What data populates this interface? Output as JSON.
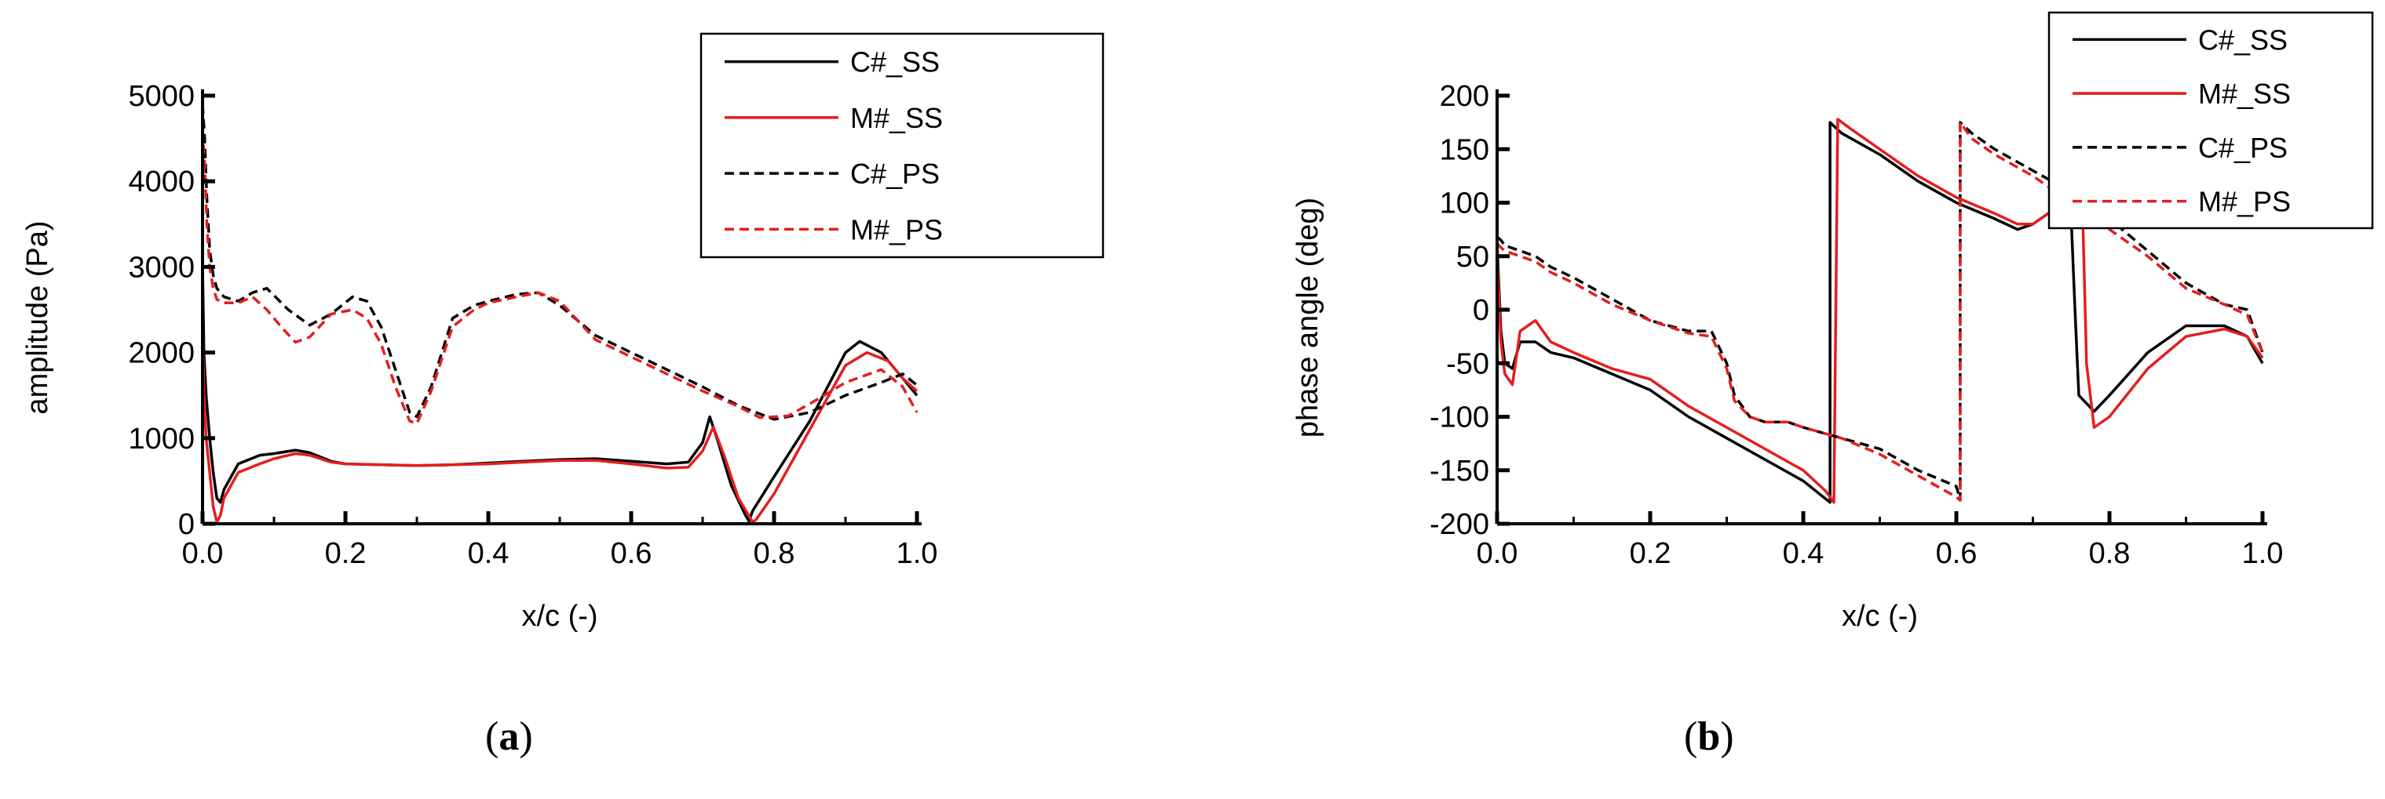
{
  "captions": {
    "a": "a",
    "b": "b"
  },
  "chart_data": [
    {
      "id": "a",
      "type": "line",
      "title": "",
      "xlabel": "x/c (-)",
      "ylabel": "amplitude (Pa)",
      "xlim": [
        0,
        1
      ],
      "ylim": [
        0,
        5000
      ],
      "xticks": [
        0.0,
        0.2,
        0.4,
        0.6,
        0.8,
        1.0
      ],
      "xtick_labels": [
        "0.0",
        "0.2",
        "0.4",
        "0.6",
        "0.8",
        "1.0"
      ],
      "yticks": [
        0,
        1000,
        2000,
        3000,
        4000,
        5000
      ],
      "ytick_labels": [
        "0",
        "1000",
        "2000",
        "3000",
        "4000",
        "5000"
      ],
      "legend_position": "top-right",
      "series": [
        {
          "name": "C#_SS",
          "color": "#000000",
          "dash": "solid",
          "x": [
            0,
            0.002,
            0.005,
            0.01,
            0.015,
            0.02,
            0.025,
            0.03,
            0.05,
            0.08,
            0.1,
            0.13,
            0.15,
            0.18,
            0.2,
            0.25,
            0.3,
            0.35,
            0.4,
            0.45,
            0.5,
            0.55,
            0.6,
            0.65,
            0.68,
            0.7,
            0.71,
            0.72,
            0.74,
            0.76,
            0.765,
            0.77,
            0.8,
            0.85,
            0.9,
            0.92,
            0.95,
            0.98,
            1.0
          ],
          "y": [
            3000,
            2000,
            1500,
            1000,
            600,
            300,
            250,
            400,
            700,
            800,
            820,
            860,
            830,
            730,
            700,
            690,
            680,
            690,
            710,
            730,
            750,
            760,
            730,
            700,
            720,
            950,
            1250,
            1000,
            450,
            100,
            30,
            150,
            550,
            1200,
            2000,
            2130,
            2000,
            1700,
            1500
          ]
        },
        {
          "name": "M#_SS",
          "color": "#e41e1e",
          "dash": "solid",
          "x": [
            0,
            0.002,
            0.005,
            0.01,
            0.015,
            0.02,
            0.025,
            0.03,
            0.05,
            0.08,
            0.1,
            0.13,
            0.15,
            0.18,
            0.2,
            0.25,
            0.3,
            0.35,
            0.4,
            0.45,
            0.5,
            0.55,
            0.6,
            0.65,
            0.68,
            0.7,
            0.715,
            0.73,
            0.75,
            0.77,
            0.775,
            0.8,
            0.85,
            0.9,
            0.93,
            0.96,
            0.98,
            1.0
          ],
          "y": [
            2300,
            1500,
            1000,
            600,
            200,
            20,
            100,
            300,
            600,
            700,
            760,
            820,
            800,
            720,
            700,
            690,
            680,
            690,
            700,
            720,
            740,
            740,
            700,
            650,
            660,
            850,
            1130,
            800,
            300,
            20,
            50,
            350,
            1100,
            1850,
            2000,
            1900,
            1700,
            1550
          ]
        },
        {
          "name": "C#_PS",
          "color": "#000000",
          "dash": "dashed",
          "x": [
            0,
            0.003,
            0.006,
            0.01,
            0.015,
            0.02,
            0.03,
            0.05,
            0.07,
            0.09,
            0.12,
            0.15,
            0.18,
            0.21,
            0.23,
            0.25,
            0.27,
            0.29,
            0.3,
            0.32,
            0.35,
            0.38,
            0.4,
            0.44,
            0.47,
            0.5,
            0.55,
            0.6,
            0.65,
            0.7,
            0.75,
            0.8,
            0.85,
            0.9,
            0.95,
            0.98,
            1.0
          ],
          "y": [
            4900,
            4500,
            3800,
            3200,
            2900,
            2750,
            2650,
            2600,
            2700,
            2750,
            2500,
            2320,
            2450,
            2650,
            2600,
            2300,
            1800,
            1300,
            1250,
            1600,
            2400,
            2550,
            2600,
            2680,
            2700,
            2550,
            2200,
            2000,
            1800,
            1600,
            1380,
            1220,
            1300,
            1500,
            1650,
            1750,
            1620
          ]
        },
        {
          "name": "M#_PS",
          "color": "#e41e1e",
          "dash": "dashed",
          "x": [
            0,
            0.003,
            0.006,
            0.01,
            0.015,
            0.02,
            0.03,
            0.05,
            0.07,
            0.09,
            0.11,
            0.13,
            0.15,
            0.18,
            0.21,
            0.23,
            0.25,
            0.27,
            0.29,
            0.3,
            0.32,
            0.35,
            0.38,
            0.4,
            0.44,
            0.47,
            0.5,
            0.55,
            0.6,
            0.65,
            0.7,
            0.75,
            0.78,
            0.82,
            0.86,
            0.9,
            0.95,
            0.98,
            1.0
          ],
          "y": [
            4600,
            4200,
            3500,
            3000,
            2750,
            2620,
            2580,
            2580,
            2650,
            2500,
            2300,
            2120,
            2180,
            2450,
            2500,
            2400,
            2100,
            1600,
            1200,
            1170,
            1550,
            2300,
            2500,
            2580,
            2650,
            2700,
            2600,
            2150,
            1950,
            1750,
            1550,
            1370,
            1240,
            1260,
            1450,
            1650,
            1800,
            1600,
            1300
          ]
        }
      ]
    },
    {
      "id": "b",
      "type": "line",
      "title": "",
      "xlabel": "x/c (-)",
      "ylabel": "phase angle (deg)",
      "xlim": [
        0,
        1
      ],
      "ylim": [
        -200,
        200
      ],
      "xticks": [
        0.0,
        0.2,
        0.4,
        0.6,
        0.8,
        1.0
      ],
      "xtick_labels": [
        "0.0",
        "0.2",
        "0.4",
        "0.6",
        "0.8",
        "1.0"
      ],
      "yticks": [
        -200,
        -150,
        -100,
        -50,
        0,
        50,
        100,
        150,
        200
      ],
      "ytick_labels": [
        "-200",
        "-150",
        "-100",
        "-50",
        "0",
        "50",
        "100",
        "150",
        "200"
      ],
      "legend_position": "top-right",
      "series": [
        {
          "name": "C#_SS",
          "color": "#000000",
          "dash": "solid",
          "x": [
            0,
            0.005,
            0.01,
            0.02,
            0.03,
            0.05,
            0.07,
            0.1,
            0.15,
            0.2,
            0.25,
            0.3,
            0.35,
            0.4,
            0.435,
            0.435,
            0.45,
            0.5,
            0.55,
            0.6,
            0.65,
            0.68,
            0.7,
            0.72,
            0.75,
            0.755,
            0.76,
            0.78,
            0.8,
            0.85,
            0.9,
            0.95,
            0.98,
            1.0
          ],
          "y": [
            60,
            -20,
            -50,
            -55,
            -30,
            -30,
            -40,
            -45,
            -60,
            -75,
            -100,
            -120,
            -140,
            -160,
            -180,
            175,
            165,
            145,
            120,
            100,
            85,
            75,
            80,
            90,
            85,
            0,
            -80,
            -95,
            -80,
            -40,
            -15,
            -15,
            -25,
            -50
          ]
        },
        {
          "name": "M#_SS",
          "color": "#e41e1e",
          "dash": "solid",
          "x": [
            0,
            0.005,
            0.01,
            0.02,
            0.03,
            0.05,
            0.07,
            0.1,
            0.15,
            0.2,
            0.25,
            0.3,
            0.35,
            0.4,
            0.43,
            0.44,
            0.445,
            0.46,
            0.5,
            0.55,
            0.6,
            0.65,
            0.68,
            0.7,
            0.72,
            0.75,
            0.765,
            0.77,
            0.78,
            0.8,
            0.85,
            0.9,
            0.95,
            0.98,
            1.0
          ],
          "y": [
            50,
            -30,
            -60,
            -70,
            -20,
            -10,
            -30,
            -40,
            -55,
            -65,
            -90,
            -110,
            -130,
            -150,
            -170,
            -180,
            178,
            170,
            150,
            125,
            105,
            90,
            80,
            80,
            90,
            80,
            90,
            -50,
            -110,
            -100,
            -55,
            -25,
            -18,
            -25,
            -45
          ]
        },
        {
          "name": "C#_PS",
          "color": "#000000",
          "dash": "dashed",
          "x": [
            0,
            0.005,
            0.01,
            0.03,
            0.05,
            0.07,
            0.1,
            0.15,
            0.2,
            0.25,
            0.28,
            0.3,
            0.31,
            0.33,
            0.35,
            0.38,
            0.4,
            0.45,
            0.5,
            0.55,
            0.6,
            0.605,
            0.605,
            0.62,
            0.65,
            0.7,
            0.75,
            0.8,
            0.85,
            0.9,
            0.95,
            0.98,
            1.0
          ],
          "y": [
            68,
            65,
            60,
            55,
            50,
            40,
            30,
            10,
            -10,
            -20,
            -20,
            -50,
            -80,
            -100,
            -105,
            -105,
            -110,
            -120,
            -130,
            -150,
            -165,
            -178,
            175,
            165,
            150,
            130,
            110,
            85,
            55,
            25,
            5,
            0,
            -40
          ]
        },
        {
          "name": "M#_PS",
          "color": "#e41e1e",
          "dash": "dashed",
          "x": [
            0,
            0.005,
            0.01,
            0.03,
            0.05,
            0.07,
            0.1,
            0.15,
            0.2,
            0.25,
            0.28,
            0.3,
            0.31,
            0.33,
            0.35,
            0.38,
            0.4,
            0.45,
            0.5,
            0.55,
            0.6,
            0.605,
            0.605,
            0.62,
            0.65,
            0.7,
            0.75,
            0.8,
            0.85,
            0.9,
            0.95,
            0.98,
            1.0
          ],
          "y": [
            62,
            58,
            55,
            50,
            45,
            35,
            25,
            5,
            -10,
            -22,
            -25,
            -55,
            -85,
            -100,
            -105,
            -105,
            -110,
            -120,
            -135,
            -155,
            -175,
            -178,
            175,
            160,
            145,
            125,
            100,
            75,
            50,
            20,
            5,
            -5,
            -40
          ]
        }
      ]
    }
  ]
}
